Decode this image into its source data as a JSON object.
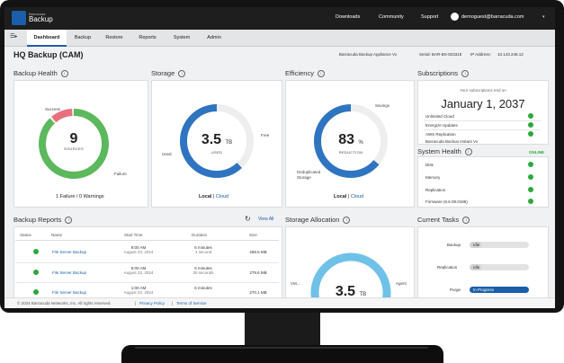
{
  "header": {
    "brand": "Barracuda",
    "product": "Backup",
    "links": [
      "Downloads",
      "Community",
      "Support"
    ],
    "user_email": "demoguest@barracuda.com"
  },
  "nav": {
    "tabs": [
      "Dashboard",
      "Backup",
      "Restore",
      "Reports",
      "System",
      "Admin"
    ],
    "active": "Dashboard"
  },
  "page": {
    "title": "HQ Backup (CAM)",
    "device": "Barracuda Backup Appliance Vx",
    "serial_label": "Serial:",
    "serial": "BAR-BS-823318",
    "ip_label": "IP Address:",
    "ip": "10.143.248.12"
  },
  "backup_health": {
    "title": "Backup Health",
    "count": "9",
    "count_label": "SOURCES",
    "success_label": "Success",
    "failure_label": "Failure",
    "link_text": "1 Failure / 0 Warnings",
    "success": 8,
    "failure": 1
  },
  "storage": {
    "title": "Storage",
    "value": "3.5",
    "unit": "TB",
    "label": "USED",
    "used_label": "Used",
    "free_label": "Free",
    "local": "Local",
    "cloud": "Cloud"
  },
  "efficiency": {
    "title": "Efficiency",
    "value": "83",
    "unit": "%",
    "label": "REDUCTION",
    "savings_label": "Savings",
    "dedup_label_1": "Deduplicated",
    "dedup_label_2": "Storage",
    "local": "Local",
    "cloud": "Cloud",
    "percent": 83
  },
  "subscriptions": {
    "title": "Subscriptions",
    "ends_text": "Your subscriptions end on",
    "date": "January 1, 2037",
    "items": [
      "Unlimited Cloud",
      "Energize Updates",
      "AWS Replication",
      "Barracuda Backup Instant Vx"
    ]
  },
  "system_health": {
    "title": "System Health",
    "status": "ONLINE",
    "items": [
      "Disk",
      "Memory",
      "Replication",
      "Firmware (6.6.08.0186)"
    ]
  },
  "backup_reports": {
    "title": "Backup Reports",
    "view_all": "View All",
    "columns": [
      "Status",
      "Name",
      "Start Time",
      "Duration",
      "Size"
    ],
    "rows": [
      {
        "name": "File Server Backup",
        "time": "9:00 AM",
        "date": "August 23, 2024",
        "dur": "6 minutes",
        "dur2": "1 second",
        "size": "268.5 MB"
      },
      {
        "name": "File Server Backup",
        "time": "5:00 AM",
        "date": "August 23, 2024",
        "dur": "6 minutes",
        "dur2": "30 seconds",
        "size": "279.6 MB"
      },
      {
        "name": "File Server Backup",
        "time": "1:00 AM",
        "date": "August 23, 2024",
        "dur": "6 minutes",
        "dur2": "",
        "size": "270.1 MB"
      }
    ]
  },
  "storage_allocation": {
    "title": "Storage Allocation",
    "value": "3.5",
    "unit": "TB",
    "left_label": "VM...",
    "right_label": "Agent"
  },
  "current_tasks": {
    "title": "Current Tasks",
    "tasks": [
      {
        "name": "Backup",
        "status": "Idle",
        "progress": 0.2
      },
      {
        "name": "Replication",
        "status": "Idle",
        "progress": 0.2
      },
      {
        "name": "Purge",
        "status": "In Progress",
        "progress": 1.0
      }
    ]
  },
  "footer": {
    "copyright": "© 2024 Barracuda Networks, Inc. All rights reserved.",
    "privacy": "Privacy Policy",
    "terms": "Terms of Service"
  },
  "colors": {
    "accent": "#1b5ea9",
    "success": "#5cb85c",
    "failure": "#e8707c",
    "storage_used": "#2f74c0",
    "efficiency": "#2f74c0",
    "allocation": "#6fc1e8",
    "ring_bg": "#eeeeee"
  }
}
